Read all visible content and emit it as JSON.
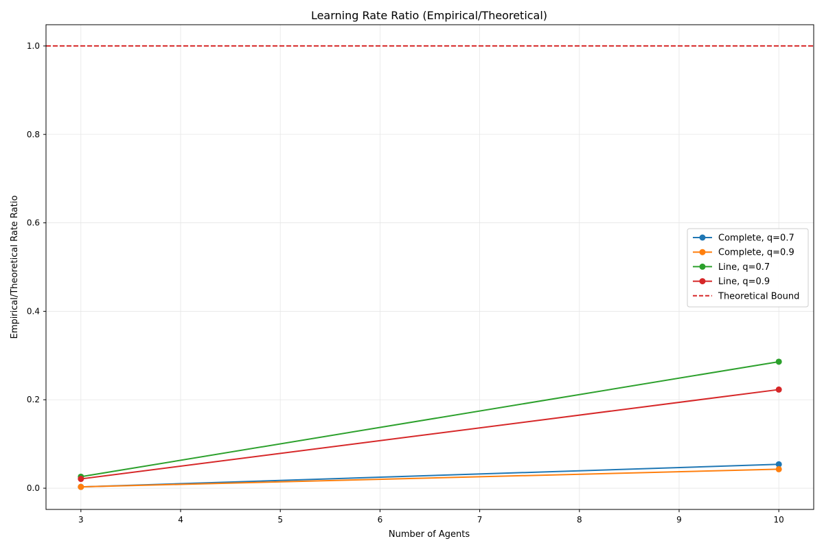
{
  "chart_data": {
    "type": "line",
    "title": "Learning Rate Ratio (Empirical/Theoretical)",
    "xlabel": "Number of Agents",
    "ylabel": "Empirical/Theoretical Rate Ratio",
    "xlim": [
      2.65,
      10.35
    ],
    "ylim": [
      -0.048,
      1.048
    ],
    "xticks": [
      3,
      4,
      5,
      6,
      7,
      8,
      9,
      10
    ],
    "yticks": [
      0.0,
      0.2,
      0.4,
      0.6,
      0.8,
      1.0
    ],
    "ytick_labels": [
      "0.0",
      "0.2",
      "0.4",
      "0.6",
      "0.8",
      "1.0"
    ],
    "grid": true,
    "legend_position": "center-right",
    "series": [
      {
        "name": "Complete, q=0.7",
        "color": "#1f77b4",
        "style": "solid-marker",
        "x": [
          3,
          10
        ],
        "y": [
          0.003,
          0.054
        ]
      },
      {
        "name": "Complete, q=0.9",
        "color": "#ff7f0e",
        "style": "solid-marker",
        "x": [
          3,
          10
        ],
        "y": [
          0.003,
          0.043
        ]
      },
      {
        "name": "Line, q=0.7",
        "color": "#2ca02c",
        "style": "solid-marker",
        "x": [
          3,
          10
        ],
        "y": [
          0.026,
          0.286
        ]
      },
      {
        "name": "Line, q=0.9",
        "color": "#d62728",
        "style": "solid-marker",
        "x": [
          3,
          10
        ],
        "y": [
          0.021,
          0.223
        ]
      }
    ],
    "reference_line": {
      "name": "Theoretical Bound",
      "color": "#d62728",
      "style": "dashed",
      "y": 1.0
    }
  }
}
